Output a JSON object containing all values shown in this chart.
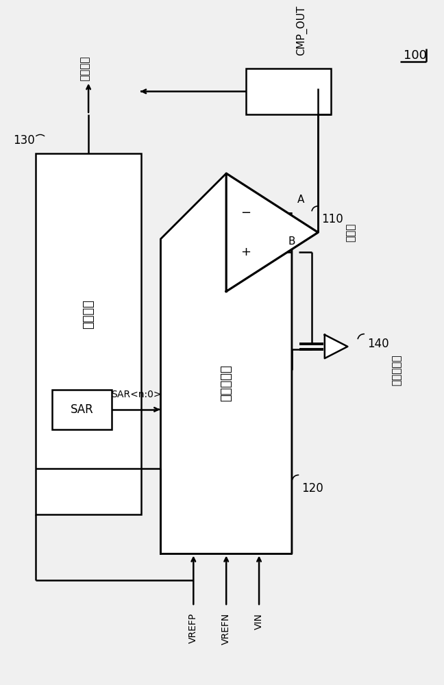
{
  "bg_color": "#f0f0f0",
  "line_color": "#000000",
  "box_color": "#ffffff",
  "title_ref": "100",
  "label_control": "控制逻辑",
  "label_capacitor_array": "电容器阵列",
  "label_comparator": "比较器",
  "label_dummy": "虚设电容器",
  "label_digital_out": "数字输出",
  "label_cmp_out": "CMP_OUT",
  "label_sar": "SAR",
  "label_sar_signal": "SAR<n:0>",
  "label_vrefp": "VREFP",
  "label_vrefn": "VREFN",
  "label_vin": "VIN",
  "label_a": "A",
  "label_b": "B",
  "ref_110": "110",
  "ref_120": "120",
  "ref_130": "130",
  "ref_140": "140"
}
